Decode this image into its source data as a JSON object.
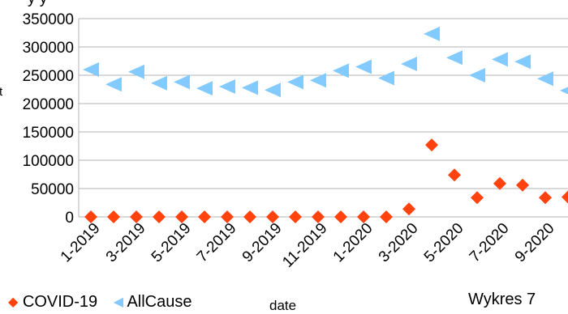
{
  "chart_data": {
    "type": "scatter",
    "xlabel": "date",
    "ylabel": "",
    "ylim": [
      0,
      350000
    ],
    "yticks": [
      "0",
      "50000",
      "100000",
      "150000",
      "200000",
      "250000",
      "300000",
      "350000"
    ],
    "x": [
      "1-2019",
      "2-2019",
      "3-2019",
      "4-2019",
      "5-2019",
      "6-2019",
      "7-2019",
      "8-2019",
      "9-2019",
      "10-2019",
      "11-2019",
      "12-2019",
      "1-2020",
      "2-2020",
      "3-2020",
      "4-2020",
      "5-2020",
      "6-2020",
      "7-2020",
      "8-2020",
      "9-2020",
      "10-2020"
    ],
    "xtick_labels": [
      "1-2019",
      "3-2019",
      "5-2019",
      "7-2019",
      "9-2019",
      "11-2019",
      "1-2020",
      "3-2020",
      "5-2020",
      "7-2020",
      "9-2020"
    ],
    "grid": "horizontal",
    "series": [
      {
        "name": "COVID-19",
        "marker": "diamond",
        "color": "#ff420e",
        "values": [
          0,
          0,
          0,
          0,
          0,
          0,
          0,
          0,
          0,
          0,
          0,
          0,
          0,
          0,
          14000,
          127000,
          74000,
          34000,
          59000,
          56000,
          34000,
          35000
        ]
      },
      {
        "name": "AllCause",
        "marker": "triangle-left",
        "color": "#83caff",
        "values": [
          260000,
          234000,
          256000,
          236000,
          238000,
          227000,
          230000,
          228000,
          224000,
          238000,
          241000,
          258000,
          265000,
          245000,
          270000,
          323000,
          281000,
          250000,
          278000,
          274000,
          244000,
          223000
        ]
      }
    ]
  },
  "legend": {
    "covid_label": "COVID-19",
    "allcause_label": "AllCause",
    "covid_glyph": "◆",
    "allcause_glyph": "◀"
  },
  "caption": "Wykres 7",
  "y_axis_title_fragment": "y y",
  "y_axis_side_fragment": "t"
}
